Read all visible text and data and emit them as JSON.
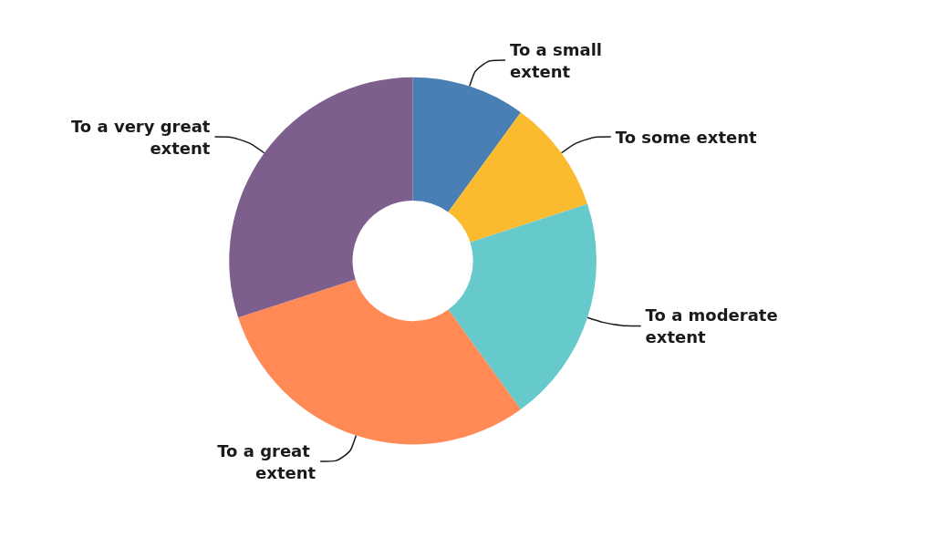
{
  "chart_data": {
    "type": "donut",
    "categories": [
      "To a small extent",
      "To some extent",
      "To a moderate extent",
      "To a great extent",
      "To a very great extent"
    ],
    "values": [
      10,
      10,
      20,
      30,
      30
    ],
    "colors": [
      "#4a7fb5",
      "#fbbb2f",
      "#66c9cb",
      "#ff8a56",
      "#7c5f8c"
    ],
    "legend": false
  }
}
